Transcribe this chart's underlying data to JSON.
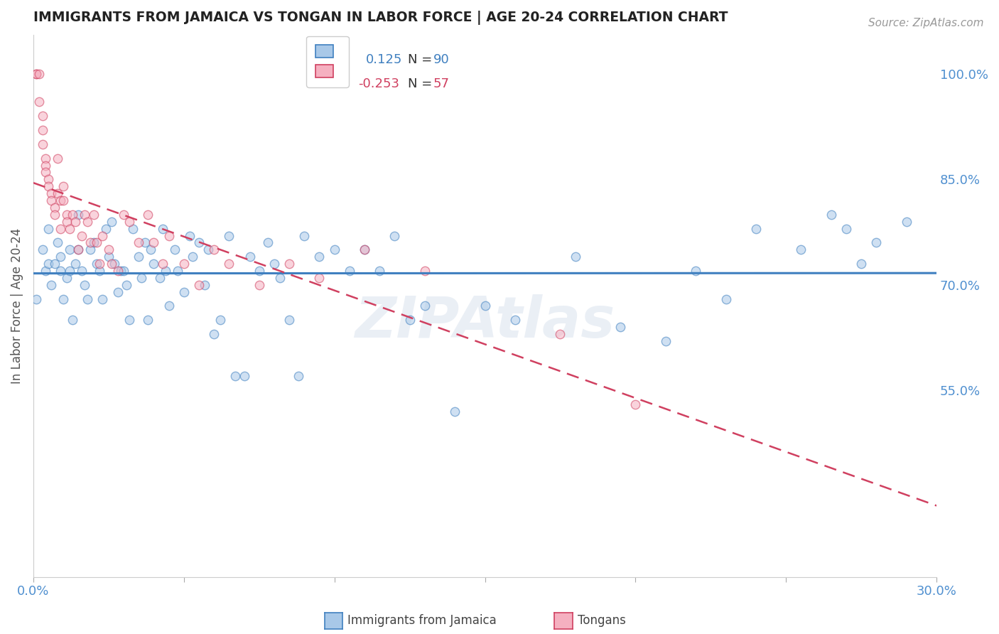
{
  "title": "IMMIGRANTS FROM JAMAICA VS TONGAN IN LABOR FORCE | AGE 20-24 CORRELATION CHART",
  "source": "Source: ZipAtlas.com",
  "ylabel": "In Labor Force | Age 20-24",
  "xmin": 0.0,
  "xmax": 0.3,
  "ymin": 0.285,
  "ymax": 1.055,
  "right_yticks": [
    0.55,
    0.7,
    0.85,
    1.0
  ],
  "right_yticklabels": [
    "55.0%",
    "70.0%",
    "85.0%",
    "100.0%"
  ],
  "xticks": [
    0.0,
    0.05,
    0.1,
    0.15,
    0.2,
    0.25,
    0.3
  ],
  "color_jamaica": "#a8c8e8",
  "color_tongan": "#f5b0c0",
  "color_jamaica_line": "#4080c0",
  "color_tongan_line": "#d04060",
  "color_axis_labels": "#5090d0",
  "color_grid": "#d8dfe8",
  "watermark": "ZIPAtlas",
  "background_color": "#ffffff",
  "marker_size": 80,
  "marker_alpha": 0.55,
  "marker_linewidth": 1.0,
  "jamaica_x": [
    0.001,
    0.003,
    0.004,
    0.005,
    0.005,
    0.006,
    0.007,
    0.008,
    0.009,
    0.009,
    0.01,
    0.011,
    0.012,
    0.012,
    0.013,
    0.014,
    0.015,
    0.015,
    0.016,
    0.017,
    0.018,
    0.019,
    0.02,
    0.021,
    0.022,
    0.023,
    0.024,
    0.025,
    0.026,
    0.027,
    0.028,
    0.029,
    0.03,
    0.031,
    0.032,
    0.033,
    0.035,
    0.036,
    0.037,
    0.038,
    0.039,
    0.04,
    0.042,
    0.043,
    0.044,
    0.045,
    0.047,
    0.048,
    0.05,
    0.052,
    0.053,
    0.055,
    0.057,
    0.058,
    0.06,
    0.062,
    0.065,
    0.067,
    0.07,
    0.072,
    0.075,
    0.078,
    0.08,
    0.082,
    0.085,
    0.088,
    0.09,
    0.095,
    0.1,
    0.105,
    0.11,
    0.115,
    0.12,
    0.125,
    0.13,
    0.14,
    0.15,
    0.16,
    0.18,
    0.195,
    0.21,
    0.22,
    0.23,
    0.24,
    0.255,
    0.265,
    0.27,
    0.275,
    0.28,
    0.29
  ],
  "jamaica_y": [
    0.68,
    0.75,
    0.72,
    0.78,
    0.73,
    0.7,
    0.73,
    0.76,
    0.72,
    0.74,
    0.68,
    0.71,
    0.75,
    0.72,
    0.65,
    0.73,
    0.8,
    0.75,
    0.72,
    0.7,
    0.68,
    0.75,
    0.76,
    0.73,
    0.72,
    0.68,
    0.78,
    0.74,
    0.79,
    0.73,
    0.69,
    0.72,
    0.72,
    0.7,
    0.65,
    0.78,
    0.74,
    0.71,
    0.76,
    0.65,
    0.75,
    0.73,
    0.71,
    0.78,
    0.72,
    0.67,
    0.75,
    0.72,
    0.69,
    0.77,
    0.74,
    0.76,
    0.7,
    0.75,
    0.63,
    0.65,
    0.77,
    0.57,
    0.57,
    0.74,
    0.72,
    0.76,
    0.73,
    0.71,
    0.65,
    0.57,
    0.77,
    0.74,
    0.75,
    0.72,
    0.75,
    0.72,
    0.77,
    0.65,
    0.67,
    0.52,
    0.67,
    0.65,
    0.74,
    0.64,
    0.62,
    0.72,
    0.68,
    0.78,
    0.75,
    0.8,
    0.78,
    0.73,
    0.76,
    0.79
  ],
  "tongan_x": [
    0.001,
    0.001,
    0.002,
    0.002,
    0.003,
    0.003,
    0.003,
    0.004,
    0.004,
    0.004,
    0.005,
    0.005,
    0.006,
    0.006,
    0.007,
    0.007,
    0.008,
    0.008,
    0.009,
    0.009,
    0.01,
    0.01,
    0.011,
    0.011,
    0.012,
    0.013,
    0.014,
    0.015,
    0.016,
    0.017,
    0.018,
    0.019,
    0.02,
    0.021,
    0.022,
    0.023,
    0.025,
    0.026,
    0.028,
    0.03,
    0.032,
    0.035,
    0.038,
    0.04,
    0.043,
    0.045,
    0.05,
    0.055,
    0.06,
    0.065,
    0.075,
    0.085,
    0.095,
    0.11,
    0.13,
    0.175,
    0.2
  ],
  "tongan_y": [
    1.0,
    1.0,
    1.0,
    0.96,
    0.94,
    0.92,
    0.9,
    0.88,
    0.87,
    0.86,
    0.85,
    0.84,
    0.83,
    0.82,
    0.81,
    0.8,
    0.88,
    0.83,
    0.82,
    0.78,
    0.84,
    0.82,
    0.8,
    0.79,
    0.78,
    0.8,
    0.79,
    0.75,
    0.77,
    0.8,
    0.79,
    0.76,
    0.8,
    0.76,
    0.73,
    0.77,
    0.75,
    0.73,
    0.72,
    0.8,
    0.79,
    0.76,
    0.8,
    0.76,
    0.73,
    0.77,
    0.73,
    0.7,
    0.75,
    0.73,
    0.7,
    0.73,
    0.71,
    0.75,
    0.72,
    0.63,
    0.53
  ]
}
